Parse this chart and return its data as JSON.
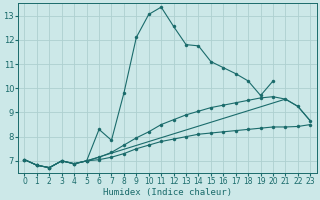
{
  "xlabel": "Humidex (Indice chaleur)",
  "bg_color": "#cce8e8",
  "grid_color": "#aed0d0",
  "line_color": "#1a6b6b",
  "xlim": [
    -0.5,
    23.5
  ],
  "ylim": [
    6.5,
    13.5
  ],
  "xticks": [
    0,
    1,
    2,
    3,
    4,
    5,
    6,
    7,
    8,
    9,
    10,
    11,
    12,
    13,
    14,
    15,
    16,
    17,
    18,
    19,
    20,
    21,
    22,
    23
  ],
  "yticks": [
    7,
    8,
    9,
    10,
    11,
    12,
    13
  ],
  "curve1_x": [
    0,
    1,
    2,
    3,
    4,
    5,
    6,
    7,
    8,
    9,
    10,
    11,
    12,
    13,
    14,
    15,
    16,
    17,
    18,
    19,
    20
  ],
  "curve1_y": [
    7.05,
    6.82,
    6.72,
    7.0,
    6.88,
    7.0,
    8.3,
    7.85,
    9.8,
    12.1,
    13.05,
    13.35,
    12.55,
    11.8,
    11.75,
    11.1,
    10.85,
    10.6,
    10.3,
    9.7,
    10.3
  ],
  "curve2_x": [
    0,
    1,
    2,
    3,
    4,
    5,
    6,
    7,
    8,
    9,
    10,
    11,
    12,
    13,
    14,
    15,
    16,
    17,
    18,
    19,
    20,
    21,
    22,
    23
  ],
  "curve2_y": [
    7.05,
    6.82,
    6.72,
    7.0,
    6.88,
    7.0,
    7.15,
    7.35,
    7.65,
    7.95,
    8.2,
    8.5,
    8.7,
    8.9,
    9.05,
    9.2,
    9.3,
    9.4,
    9.5,
    9.6,
    9.65,
    9.55,
    9.25,
    8.65
  ],
  "curve3_x": [
    0,
    1,
    2,
    3,
    4,
    5,
    6,
    7,
    8,
    9,
    10,
    11,
    12,
    13,
    14,
    15,
    16,
    17,
    18,
    19,
    20,
    21,
    22,
    23
  ],
  "curve3_y": [
    7.05,
    6.82,
    6.72,
    7.0,
    6.88,
    7.0,
    7.05,
    7.15,
    7.3,
    7.5,
    7.65,
    7.8,
    7.9,
    8.0,
    8.1,
    8.15,
    8.2,
    8.25,
    8.3,
    8.35,
    8.4,
    8.4,
    8.42,
    8.5
  ],
  "curve4_x": [
    0,
    1,
    2,
    3,
    4,
    5,
    21,
    22,
    23
  ],
  "curve4_y": [
    7.05,
    6.82,
    6.72,
    7.0,
    6.88,
    7.0,
    9.55,
    9.25,
    8.65
  ]
}
